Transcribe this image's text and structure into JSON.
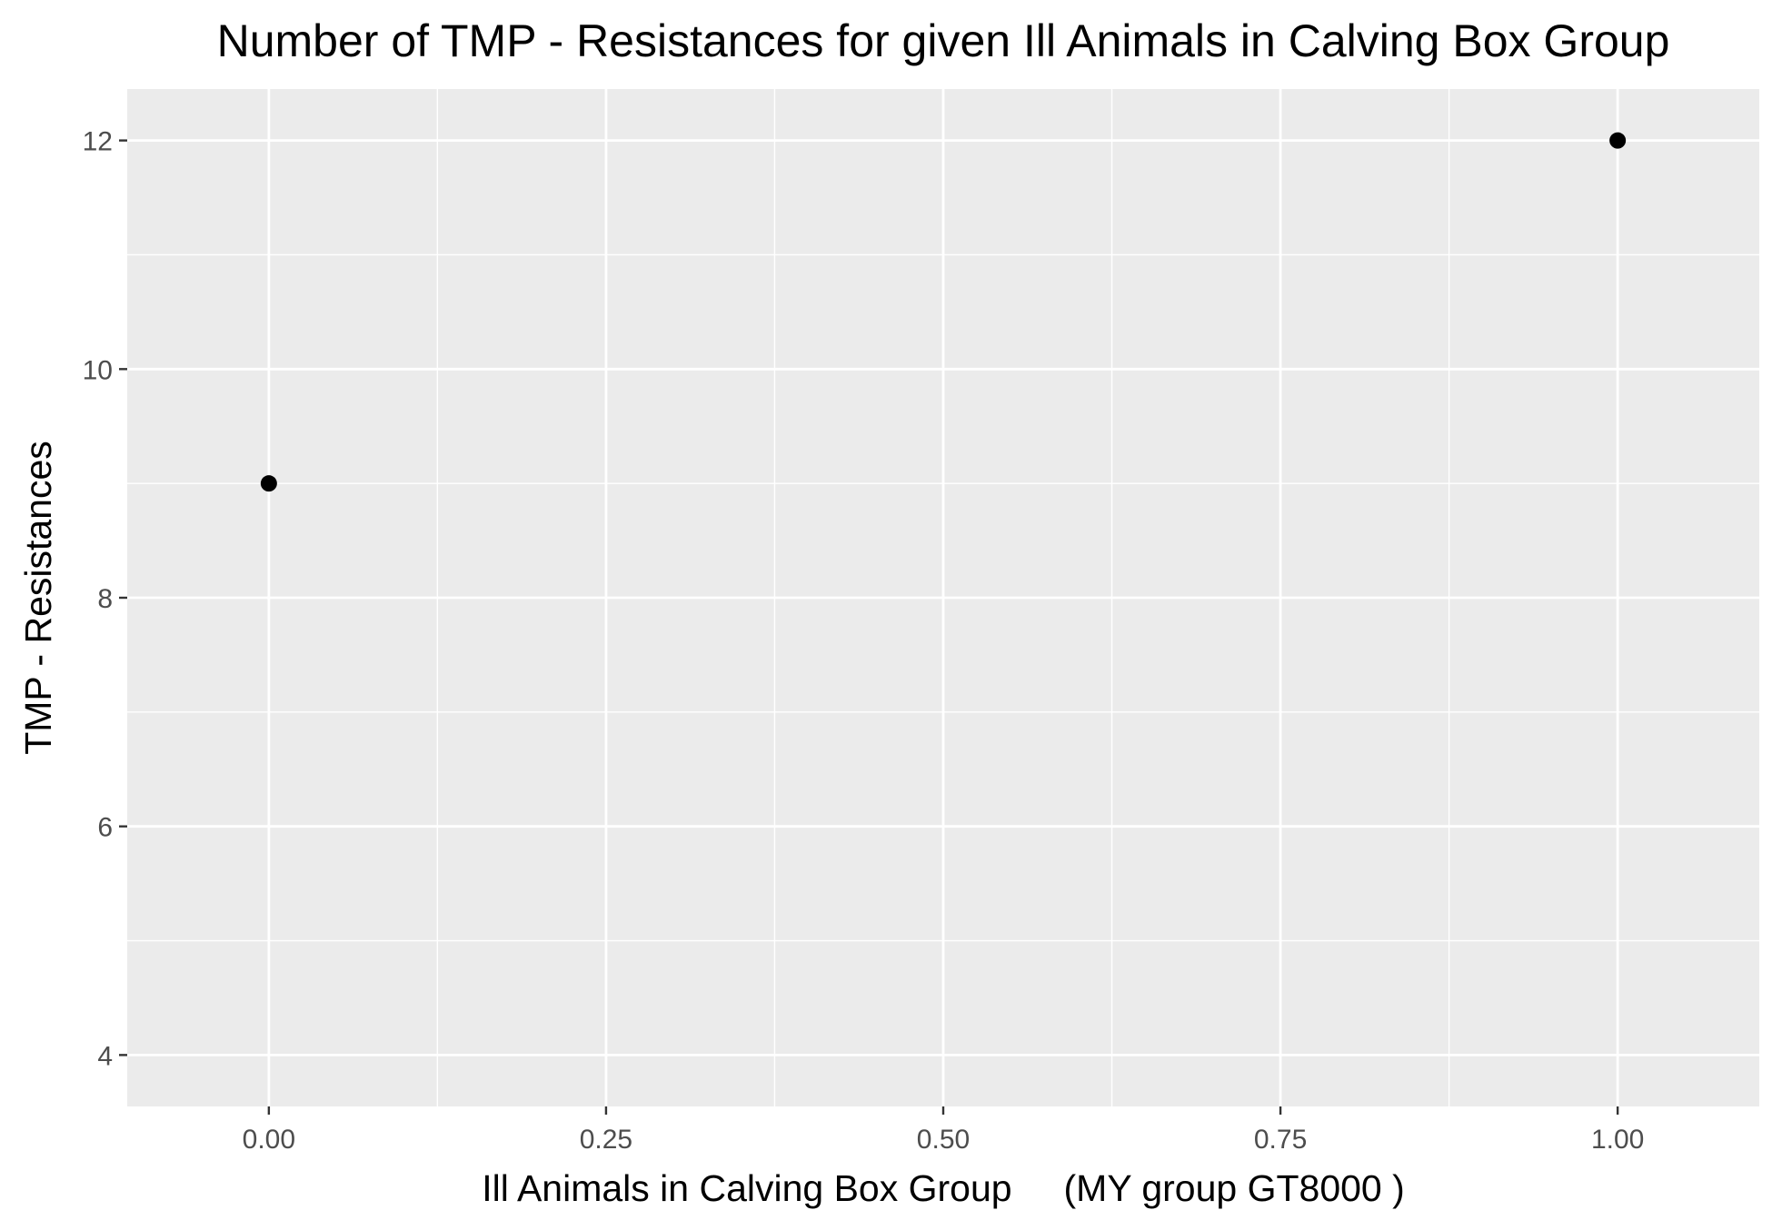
{
  "chart_data": {
    "type": "scatter",
    "title": "Number of TMP - Resistances for given Ill Animals in Calving Box Group",
    "xlabel": "Ill Animals in Calving Box Group     (MY group GT8000 )",
    "ylabel": "TMP - Resistances",
    "xlim": [
      -0.105,
      1.105
    ],
    "ylim": [
      3.55,
      12.45
    ],
    "x_ticks": [
      0,
      0.25,
      0.5,
      0.75,
      1
    ],
    "x_tick_labels": [
      "0.00",
      "0.25",
      "0.50",
      "0.75",
      "1.00"
    ],
    "y_ticks": [
      4,
      6,
      8,
      10,
      12
    ],
    "y_tick_labels": [
      "4",
      "6",
      "8",
      "10",
      "12"
    ],
    "points": [
      {
        "x": 0,
        "y": 9
      },
      {
        "x": 1,
        "y": 12
      }
    ],
    "grid": true,
    "legend": "none",
    "colors": {
      "panel_background": "#ebebeb",
      "grid_major": "#ffffff",
      "grid_minor": "#ffffff",
      "point": "#000000",
      "tick_text": "#4d4d4d",
      "tick_mark": "#333333"
    }
  }
}
